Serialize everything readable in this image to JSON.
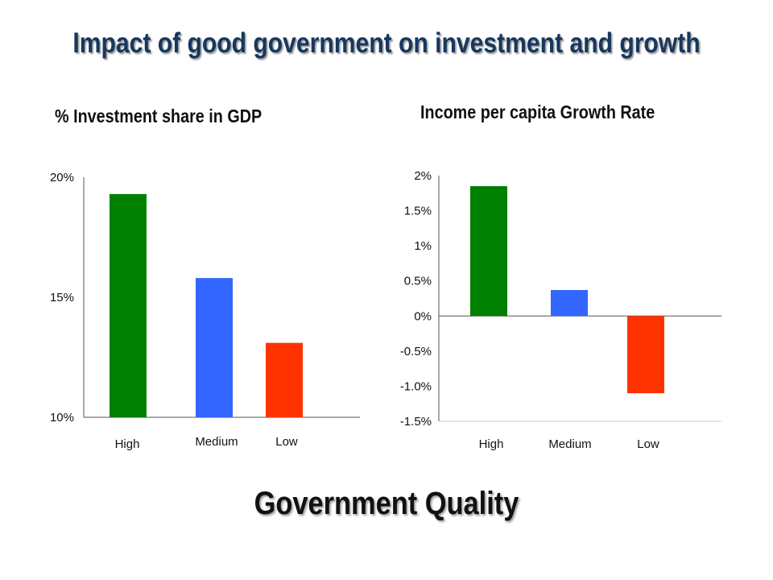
{
  "title": "Impact of good government on investment and growth",
  "footer": "Government Quality",
  "colors": {
    "High": "#008000",
    "Medium": "#3366ff",
    "Low": "#ff3300",
    "axis": "#555555"
  },
  "chart_data": [
    {
      "type": "bar",
      "title": "% Investment share in GDP",
      "categories": [
        "High",
        "Medium",
        "Low"
      ],
      "values": [
        19.3,
        15.8,
        13.1
      ],
      "ylim": [
        10,
        20
      ],
      "yticks": [
        10,
        15,
        20
      ],
      "ytick_labels": [
        "10%",
        "15%",
        "20%"
      ],
      "grid": false,
      "legend": "none"
    },
    {
      "type": "bar",
      "title": "Income per capita Growth Rate",
      "categories": [
        "High",
        "Medium",
        "Low"
      ],
      "values": [
        1.85,
        0.37,
        -1.1
      ],
      "ylim": [
        -1.5,
        2
      ],
      "yticks": [
        2,
        1.5,
        1,
        0.5,
        0,
        -0.5,
        -1.0,
        -1.5
      ],
      "ytick_labels": [
        "2%",
        "1.5%",
        "1%",
        "0.5%",
        "0%",
        "-0.5%",
        "-1.0%",
        "-1.5%"
      ],
      "grid": false,
      "legend": "none"
    }
  ]
}
